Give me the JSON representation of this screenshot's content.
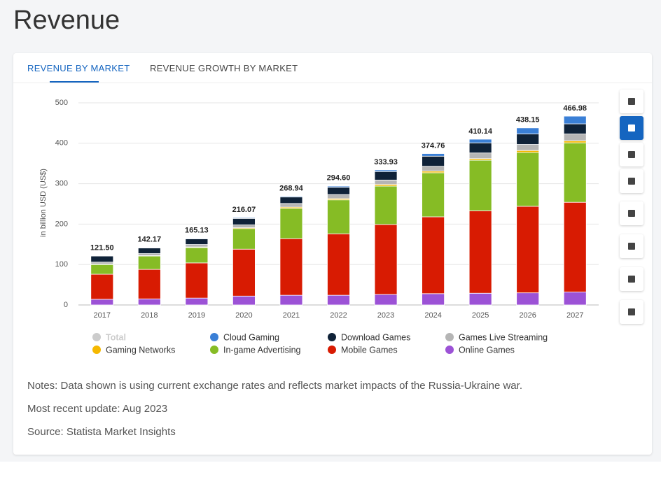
{
  "page_title": "Revenue",
  "tabs": [
    "REVENUE BY MARKET",
    "REVENUE GROWTH BY MARKET"
  ],
  "notes": [
    "Notes: Data shown is using current exchange rates and reflects market impacts of the Russia-Ukraine war.",
    "Most recent update: Aug 2023",
    "Source: Statista Market Insights"
  ],
  "chart_data": {
    "type": "stacked-bar",
    "y_label": "in billion USD (US$)",
    "categories": [
      "2017",
      "2018",
      "2019",
      "2020",
      "2021",
      "2022",
      "2023",
      "2024",
      "2025",
      "2026",
      "2027"
    ],
    "ylim": [
      0,
      500
    ],
    "yticks": [
      0,
      100,
      200,
      300,
      400,
      500
    ],
    "grid": true,
    "series": [
      {
        "name": "Total",
        "color": "#cccccc",
        "visible": false,
        "values": [
          121.5,
          142.17,
          165.13,
          216.07,
          268.94,
          294.6,
          333.93,
          374.76,
          410.14,
          438.15,
          466.98
        ],
        "value_labels": [
          "121.50",
          "142.17",
          "165.13",
          "216.07",
          "268.94",
          "294.60",
          "333.93",
          "374.76",
          "410.14",
          "438.15",
          "466.98"
        ]
      },
      {
        "name": "Cloud Gaming",
        "color": "#3a7fd6",
        "values": [
          0.5,
          1,
          1.5,
          2,
          2,
          3,
          4,
          6.5,
          9,
          15,
          19
        ]
      },
      {
        "name": "Download Games",
        "color": "#0f2238",
        "values": [
          15,
          14,
          14,
          16,
          16,
          18,
          21,
          25,
          25,
          26,
          25
        ]
      },
      {
        "name": "Games Live Streaming",
        "color": "#b5b5b5",
        "values": [
          5,
          5,
          6,
          7,
          9,
          10,
          11,
          12,
          14,
          15,
          17
        ]
      },
      {
        "name": "Gaming Networks",
        "color": "#f5b800",
        "values": [
          1,
          1,
          1.5,
          2,
          3,
          3,
          4,
          4,
          4,
          5,
          5
        ]
      },
      {
        "name": "In-game Advertising",
        "color": "#86bc25",
        "values": [
          24,
          33,
          38,
          51,
          75,
          84,
          95,
          109,
          125,
          133,
          147
        ]
      },
      {
        "name": "Mobile Games",
        "color": "#d81b02",
        "values": [
          62,
          73,
          87,
          116,
          140,
          152,
          173,
          190,
          204,
          214,
          222
        ]
      },
      {
        "name": "Online Games",
        "color": "#9c52d6",
        "values": [
          14,
          15,
          17,
          22,
          24,
          24,
          26,
          28,
          29,
          30,
          32
        ]
      }
    ]
  }
}
